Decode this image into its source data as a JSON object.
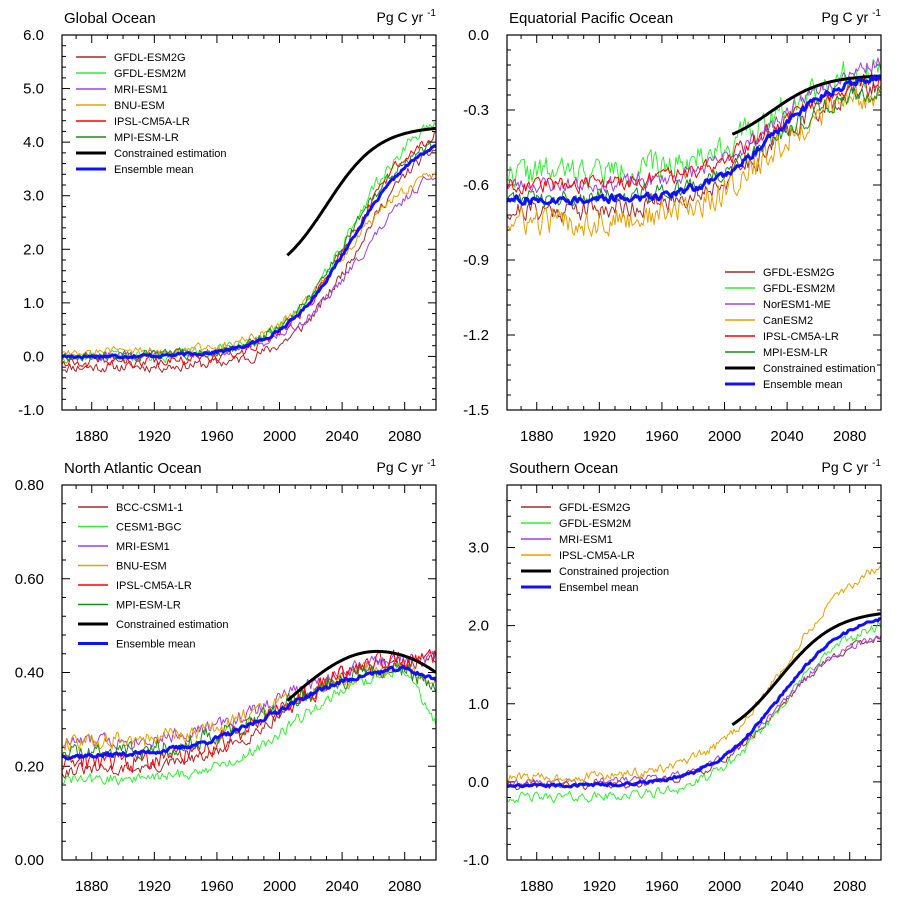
{
  "figure": {
    "unit": "Pg C yr",
    "unit_exp": "-1"
  },
  "chart_data": [
    {
      "type": "line",
      "title": "Global Ocean",
      "xlabel": "",
      "ylabel": "Pg C yr-1",
      "xlim": [
        1861,
        2100
      ],
      "ylim": [
        -1.0,
        6.0
      ],
      "xticks": [
        1880,
        1920,
        1960,
        2000,
        2040,
        2080
      ],
      "yticks": [
        -1.0,
        0.0,
        1.0,
        2.0,
        3.0,
        4.0,
        5.0,
        6.0
      ],
      "ytick_labels": [
        "-1.0",
        "0.0",
        "1.0",
        "2.0",
        "3.0",
        "4.0",
        "5.0",
        "6.0"
      ],
      "legend_position": "top-left",
      "series": [
        {
          "name": "GFDL-ESM2G",
          "color": "#a52a2a",
          "style": "model",
          "seed": 11,
          "noise": 0.16,
          "start": -0.2,
          "end": 4.3,
          "k": 0.045,
          "mid": 2050
        },
        {
          "name": "GFDL-ESM2M",
          "color": "#33ee33",
          "style": "model",
          "seed": 12,
          "noise": 0.18,
          "start": 0.0,
          "end": 4.7,
          "k": 0.045,
          "mid": 2045
        },
        {
          "name": "MRI-ESM1",
          "color": "#a040e0",
          "style": "model",
          "seed": 13,
          "noise": 0.14,
          "start": 0.0,
          "end": 4.0,
          "k": 0.04,
          "mid": 2055
        },
        {
          "name": "BNU-ESM",
          "color": "#e8a000",
          "style": "model",
          "seed": 14,
          "noise": 0.15,
          "start": 0.1,
          "end": 3.6,
          "k": 0.045,
          "mid": 2040
        },
        {
          "name": "IPSL-CM5A-LR",
          "color": "#ff0000",
          "style": "model",
          "seed": 15,
          "noise": 0.15,
          "start": -0.1,
          "end": 4.5,
          "k": 0.045,
          "mid": 2045
        },
        {
          "name": "MPI-ESM-LR",
          "color": "#1a8c1a",
          "style": "model",
          "seed": 16,
          "noise": 0.16,
          "start": 0.0,
          "end": 4.3,
          "k": 0.045,
          "mid": 2042
        },
        {
          "name": "Constrained estimation",
          "color": "#000000",
          "style": "constrained",
          "start": 1.35,
          "end": 4.3,
          "k": 0.06,
          "mid": 2030,
          "x_start": 2005
        },
        {
          "name": "Ensemble mean",
          "color": "#1010ff",
          "style": "mean",
          "seed": 17,
          "noise": 0.05,
          "start": 0.0,
          "end": 4.25,
          "k": 0.045,
          "mid": 2045
        }
      ]
    },
    {
      "type": "line",
      "title": "Equatorial Pacific Ocean",
      "xlabel": "",
      "ylabel": "Pg C yr-1",
      "xlim": [
        1861,
        2100
      ],
      "ylim": [
        -1.5,
        0.0
      ],
      "xticks": [
        1880,
        1920,
        1960,
        2000,
        2040,
        2080
      ],
      "yticks": [
        -1.5,
        -1.2,
        -0.9,
        -0.6,
        -0.3,
        0.0
      ],
      "ytick_labels": [
        "-1.5",
        "-1.2",
        "-0.9",
        "-0.6",
        "-0.3",
        "0.0"
      ],
      "legend_position": "bottom-right",
      "series": [
        {
          "name": "GFDL-ESM2G",
          "color": "#a52a2a",
          "style": "model",
          "seed": 21,
          "noise": 0.07,
          "start": -0.7,
          "end": -0.17,
          "k": 0.04,
          "mid": 2030
        },
        {
          "name": "GFDL-ESM2M",
          "color": "#33ee33",
          "style": "model",
          "seed": 22,
          "noise": 0.09,
          "start": -0.55,
          "end": -0.1,
          "k": 0.04,
          "mid": 2030
        },
        {
          "name": "NorESM1-ME",
          "color": "#a040e0",
          "style": "model",
          "seed": 23,
          "noise": 0.05,
          "start": -0.6,
          "end": -0.07,
          "k": 0.04,
          "mid": 2035
        },
        {
          "name": "CanESM2",
          "color": "#e8a000",
          "style": "model",
          "seed": 24,
          "noise": 0.09,
          "start": -0.75,
          "end": -0.2,
          "k": 0.04,
          "mid": 2030
        },
        {
          "name": "IPSL-CM5A-LR",
          "color": "#ff0000",
          "style": "model",
          "seed": 25,
          "noise": 0.05,
          "start": -0.6,
          "end": -0.15,
          "k": 0.04,
          "mid": 2030
        },
        {
          "name": "MPI-ESM-LR",
          "color": "#1a8c1a",
          "style": "model",
          "seed": 26,
          "noise": 0.06,
          "start": -0.65,
          "end": -0.2,
          "k": 0.04,
          "mid": 2030
        },
        {
          "name": "Constrained estimation",
          "color": "#000000",
          "style": "constrained",
          "start": -0.45,
          "end": -0.16,
          "k": 0.06,
          "mid": 2030,
          "x_start": 2005
        },
        {
          "name": "Ensemble mean",
          "color": "#1010ff",
          "style": "mean",
          "seed": 27,
          "noise": 0.025,
          "start": -0.66,
          "end": -0.15,
          "k": 0.045,
          "mid": 2030
        }
      ]
    },
    {
      "type": "line",
      "title": "North Atlantic Ocean",
      "xlabel": "",
      "ylabel": "Pg C yr-1",
      "xlim": [
        1861,
        2100
      ],
      "ylim": [
        0.0,
        0.8
      ],
      "xticks": [
        1880,
        1920,
        1960,
        2000,
        2040,
        2080
      ],
      "yticks": [
        0.0,
        0.2,
        0.4,
        0.6,
        0.8
      ],
      "ytick_labels": [
        "0.00",
        "0.20",
        "0.40",
        "0.60",
        "0.80"
      ],
      "legend_position": "top-left",
      "series": [
        {
          "name": "BCC-CSM1-1",
          "color": "#a52a2a",
          "style": "model",
          "seed": 31,
          "noise": 0.022,
          "start": 0.19,
          "end": 0.43,
          "k": 0.04,
          "mid": 2000,
          "drop": 0.0
        },
        {
          "name": "CESM1-BGC",
          "color": "#33ee33",
          "style": "model",
          "seed": 32,
          "noise": 0.02,
          "start": 0.17,
          "end": 0.42,
          "k": 0.04,
          "mid": 2010,
          "drop": 0.12
        },
        {
          "name": "MRI-ESM1",
          "color": "#a040e0",
          "style": "model",
          "seed": 33,
          "noise": 0.025,
          "start": 0.25,
          "end": 0.44,
          "k": 0.035,
          "mid": 2000,
          "drop": 0.0
        },
        {
          "name": "BNU-ESM",
          "color": "#e8a000",
          "style": "model",
          "seed": 34,
          "noise": 0.03,
          "start": 0.25,
          "end": 0.42,
          "k": 0.035,
          "mid": 2000,
          "drop": 0.04
        },
        {
          "name": "IPSL-CM5A-LR",
          "color": "#ff0000",
          "style": "model",
          "seed": 35,
          "noise": 0.035,
          "start": 0.2,
          "end": 0.44,
          "k": 0.035,
          "mid": 2000,
          "drop": 0.0
        },
        {
          "name": "MPI-ESM-LR",
          "color": "#1a8c1a",
          "style": "model",
          "seed": 36,
          "noise": 0.03,
          "start": 0.23,
          "end": 0.42,
          "k": 0.035,
          "mid": 2000,
          "drop": 0.05
        },
        {
          "name": "Constrained estimation",
          "color": "#000000",
          "style": "hump",
          "peak_year": 2062,
          "peak": 0.445,
          "x_start": 2005,
          "start": 0.34,
          "end": 0.4
        },
        {
          "name": "Ensemble mean",
          "color": "#1010ff",
          "style": "mean",
          "seed": 37,
          "noise": 0.008,
          "start": 0.22,
          "end": 0.42,
          "k": 0.035,
          "mid": 2000,
          "drop": 0.03
        }
      ]
    },
    {
      "type": "line",
      "title": "Southern Ocean",
      "xlabel": "",
      "ylabel": "Pg C yr-1",
      "xlim": [
        1861,
        2100
      ],
      "ylim": [
        -1.0,
        3.8
      ],
      "xticks": [
        1880,
        1920,
        1960,
        2000,
        2040,
        2080
      ],
      "yticks": [
        -1.0,
        0.0,
        1.0,
        2.0,
        3.0
      ],
      "ytick_labels": [
        "-1.0",
        "0.0",
        "1.0",
        "2.0",
        "3.0"
      ],
      "legend_position": "top-left",
      "series": [
        {
          "name": "GFDL-ESM2G",
          "color": "#a52a2a",
          "style": "model",
          "seed": 41,
          "noise": 0.08,
          "start": -0.05,
          "end": 1.95,
          "k": 0.045,
          "mid": 2035
        },
        {
          "name": "GFDL-ESM2M",
          "color": "#33ee33",
          "style": "model",
          "seed": 42,
          "noise": 0.1,
          "start": -0.2,
          "end": 2.1,
          "k": 0.045,
          "mid": 2035
        },
        {
          "name": "MRI-ESM1",
          "color": "#a040e0",
          "style": "model",
          "seed": 43,
          "noise": 0.07,
          "start": 0.0,
          "end": 1.95,
          "k": 0.045,
          "mid": 2035
        },
        {
          "name": "IPSL-CM5A-LR",
          "color": "#e8a000",
          "style": "model",
          "seed": 44,
          "noise": 0.1,
          "start": 0.05,
          "end": 3.0,
          "k": 0.04,
          "mid": 2040
        },
        {
          "name": "Constrained projection",
          "color": "#000000",
          "style": "constrained",
          "start": 0.45,
          "end": 2.2,
          "k": 0.055,
          "mid": 2035,
          "x_start": 2005
        },
        {
          "name": "Ensembel mean",
          "color": "#1010ff",
          "style": "mean",
          "seed": 45,
          "noise": 0.03,
          "start": -0.05,
          "end": 2.2,
          "k": 0.045,
          "mid": 2035
        }
      ]
    }
  ]
}
